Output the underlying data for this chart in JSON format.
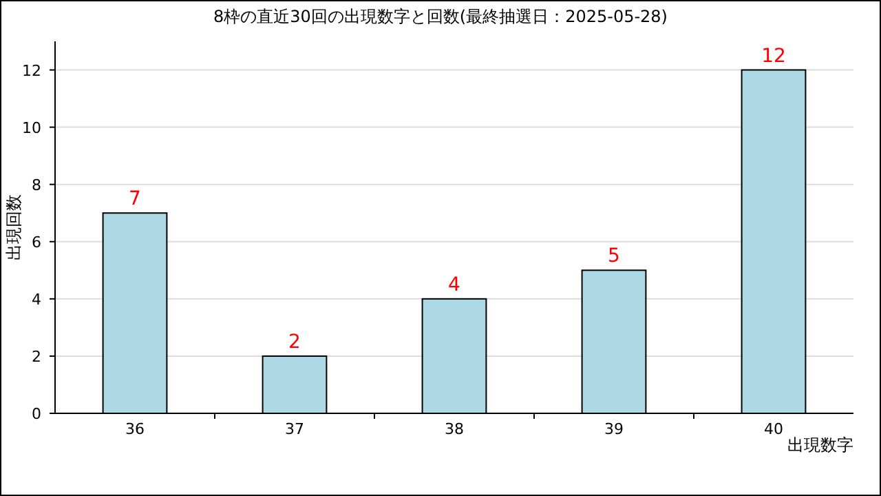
{
  "chart_data": {
    "type": "bar",
    "title": "8枠の直近30回の出現数字と回数(最終抽選日：2025-05-28)",
    "xlabel": "出現数字",
    "ylabel": "出現回数",
    "categories": [
      "36",
      "37",
      "38",
      "39",
      "40"
    ],
    "values": [
      7,
      2,
      4,
      5,
      12
    ],
    "color": "#add8e6",
    "ylim": [
      0,
      13
    ],
    "yticks": [
      0,
      2,
      4,
      6,
      8,
      10,
      12
    ],
    "grid": "y",
    "data_labels": true
  }
}
